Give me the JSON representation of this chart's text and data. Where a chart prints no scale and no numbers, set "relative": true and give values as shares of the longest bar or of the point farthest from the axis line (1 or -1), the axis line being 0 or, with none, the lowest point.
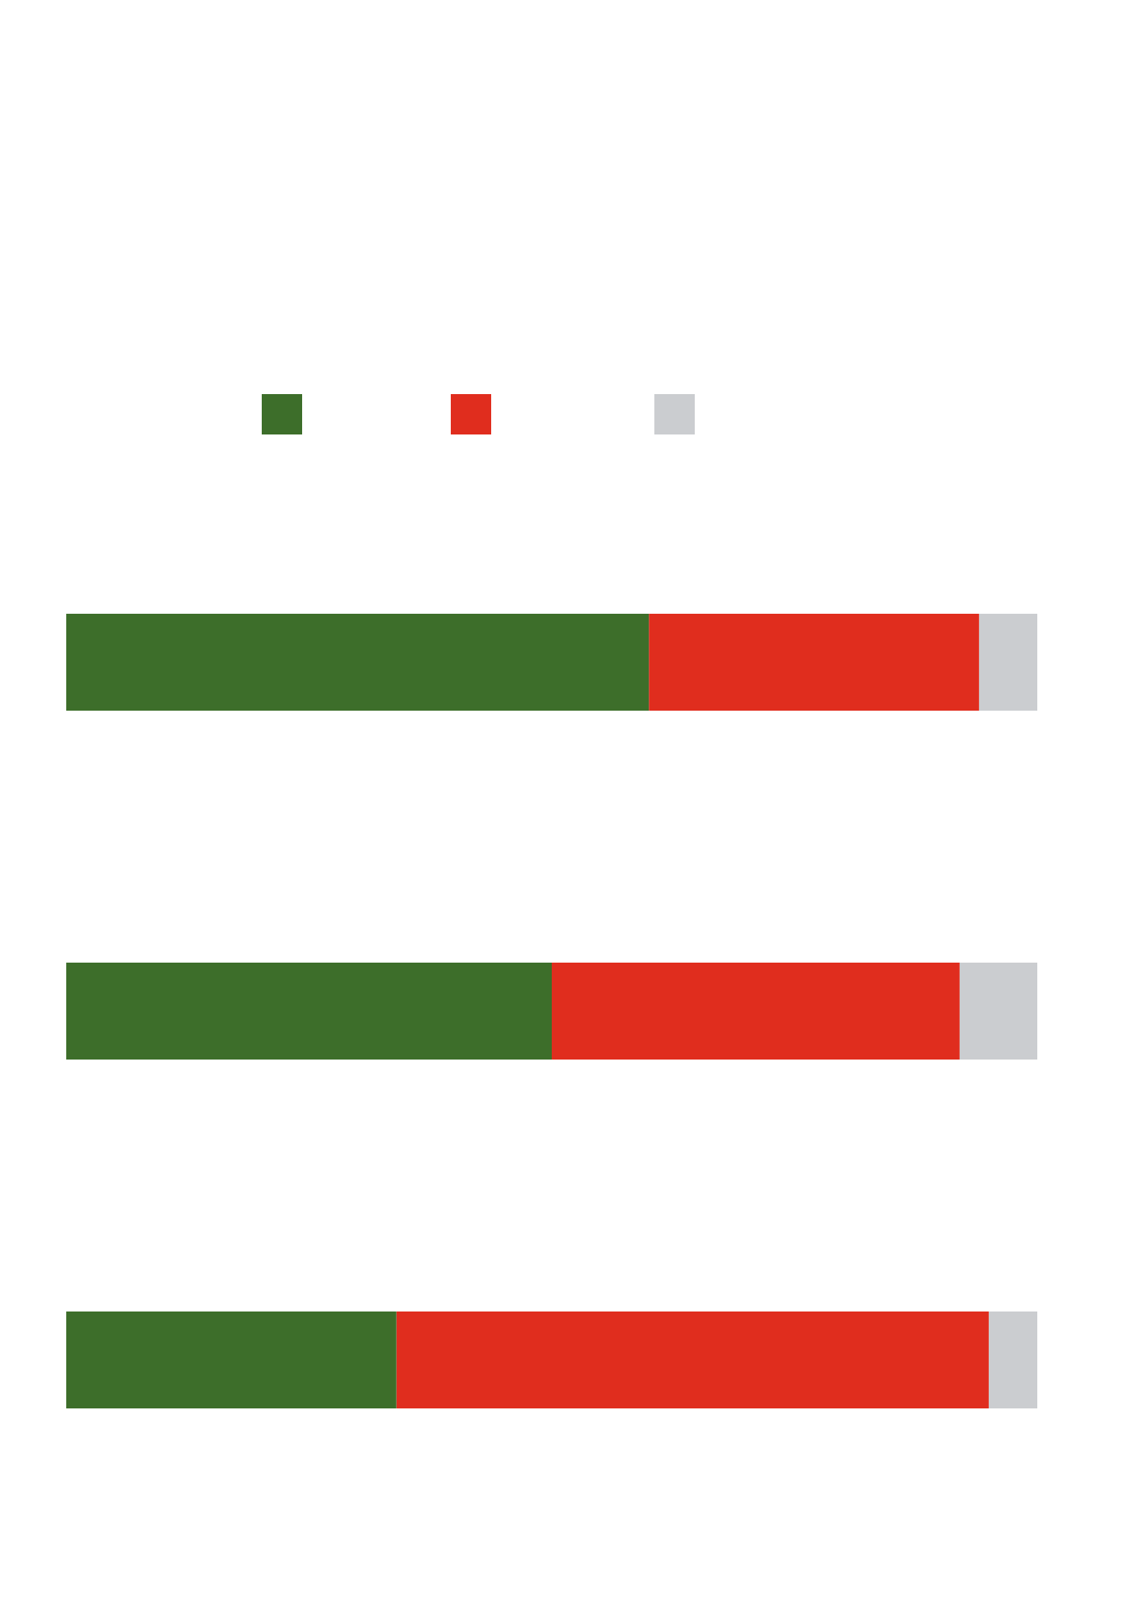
{
  "chart_data": {
    "type": "bar",
    "orientation": "horizontal",
    "stacked": true,
    "relative": true,
    "categories": [
      null,
      null,
      null
    ],
    "series": [
      {
        "color": "#3d6e2a",
        "values": [
          0.6,
          0.5,
          0.34
        ]
      },
      {
        "color": "#e02d1e",
        "values": [
          0.34,
          0.42,
          0.61
        ]
      },
      {
        "color": "#cbcdd0",
        "values": [
          0.06,
          0.08,
          0.05
        ]
      }
    ]
  }
}
